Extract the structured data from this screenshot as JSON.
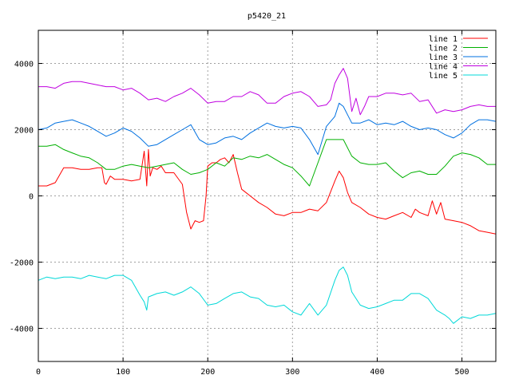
{
  "chart_data": {
    "type": "line",
    "title": "p5420_21",
    "xlabel": "",
    "ylabel": "",
    "xlim": [
      0,
      540
    ],
    "ylim": [
      -5000,
      5000
    ],
    "xticks": [
      0,
      100,
      200,
      300,
      400,
      500
    ],
    "yticks": [
      -4000,
      -2000,
      0,
      2000,
      4000
    ],
    "grid": true,
    "legend_position": "top-right",
    "series": [
      {
        "name": "line 1",
        "color": "#ff0000",
        "x": [
          0,
          10,
          20,
          30,
          40,
          50,
          60,
          70,
          75,
          78,
          80,
          85,
          90,
          100,
          110,
          120,
          125,
          128,
          130,
          132,
          135,
          140,
          145,
          150,
          160,
          170,
          175,
          180,
          185,
          190,
          195,
          198,
          200,
          205,
          210,
          215,
          220,
          225,
          230,
          235,
          240,
          245,
          250,
          260,
          270,
          280,
          290,
          300,
          310,
          320,
          330,
          340,
          350,
          355,
          360,
          365,
          370,
          380,
          390,
          400,
          410,
          420,
          430,
          440,
          445,
          450,
          460,
          465,
          470,
          475,
          480,
          490,
          500,
          510,
          520,
          530,
          540
        ],
        "values": [
          300,
          300,
          400,
          850,
          850,
          800,
          800,
          850,
          850,
          400,
          350,
          600,
          500,
          500,
          450,
          500,
          1350,
          300,
          1400,
          600,
          850,
          800,
          900,
          700,
          700,
          350,
          -500,
          -1000,
          -750,
          -800,
          -750,
          0,
          900,
          1000,
          1000,
          1100,
          1150,
          1000,
          1250,
          700,
          200,
          100,
          0,
          -200,
          -350,
          -550,
          -600,
          -500,
          -500,
          -400,
          -450,
          -200,
          450,
          750,
          550,
          100,
          -200,
          -350,
          -550,
          -650,
          -700,
          -600,
          -500,
          -650,
          -400,
          -500,
          -600,
          -150,
          -550,
          -200,
          -700,
          -750,
          -800,
          -900,
          -1050,
          -1100,
          -1150
        ]
      },
      {
        "name": "line 2",
        "color": "#00b000",
        "x": [
          0,
          10,
          20,
          30,
          40,
          50,
          60,
          70,
          80,
          90,
          100,
          110,
          120,
          130,
          140,
          150,
          160,
          170,
          180,
          190,
          200,
          210,
          220,
          230,
          240,
          250,
          260,
          270,
          280,
          290,
          300,
          310,
          320,
          330,
          340,
          350,
          360,
          370,
          380,
          390,
          400,
          410,
          420,
          430,
          440,
          450,
          460,
          470,
          480,
          490,
          500,
          510,
          520,
          530,
          540
        ],
        "values": [
          1500,
          1500,
          1550,
          1400,
          1300,
          1200,
          1150,
          1000,
          800,
          800,
          900,
          950,
          900,
          850,
          900,
          950,
          1000,
          800,
          650,
          700,
          800,
          1000,
          900,
          1150,
          1100,
          1200,
          1150,
          1250,
          1100,
          950,
          850,
          600,
          300,
          1000,
          1700,
          1700,
          1700,
          1200,
          1000,
          950,
          950,
          1000,
          750,
          550,
          700,
          750,
          650,
          650,
          900,
          1200,
          1300,
          1250,
          1150,
          950,
          950
        ]
      },
      {
        "name": "line 3",
        "color": "#0070e0",
        "x": [
          0,
          10,
          20,
          30,
          40,
          50,
          60,
          70,
          80,
          90,
          100,
          110,
          120,
          130,
          140,
          150,
          160,
          170,
          180,
          190,
          200,
          210,
          220,
          230,
          240,
          250,
          260,
          270,
          280,
          290,
          300,
          310,
          320,
          330,
          340,
          350,
          355,
          360,
          365,
          370,
          380,
          390,
          400,
          410,
          420,
          430,
          440,
          450,
          460,
          470,
          480,
          490,
          500,
          510,
          520,
          530,
          540
        ],
        "values": [
          2000,
          2050,
          2200,
          2250,
          2300,
          2200,
          2100,
          1950,
          1800,
          1900,
          2050,
          1950,
          1750,
          1500,
          1550,
          1700,
          1850,
          2000,
          2150,
          1700,
          1550,
          1600,
          1750,
          1800,
          1700,
          1900,
          2050,
          2200,
          2100,
          2050,
          2100,
          2050,
          1700,
          1250,
          2100,
          2400,
          2800,
          2700,
          2450,
          2200,
          2200,
          2300,
          2150,
          2200,
          2150,
          2250,
          2100,
          2000,
          2050,
          2000,
          1850,
          1750,
          1900,
          2150,
          2300,
          2300,
          2250
        ]
      },
      {
        "name": "line 4",
        "color": "#c000e0",
        "x": [
          0,
          10,
          20,
          30,
          40,
          50,
          60,
          70,
          80,
          90,
          100,
          110,
          120,
          130,
          140,
          150,
          160,
          170,
          180,
          190,
          200,
          210,
          220,
          230,
          240,
          250,
          260,
          270,
          280,
          290,
          300,
          310,
          320,
          330,
          340,
          345,
          350,
          355,
          360,
          365,
          370,
          375,
          380,
          385,
          390,
          400,
          410,
          420,
          430,
          440,
          450,
          460,
          470,
          480,
          490,
          500,
          510,
          520,
          530,
          540
        ],
        "values": [
          3300,
          3300,
          3250,
          3400,
          3450,
          3450,
          3400,
          3350,
          3300,
          3300,
          3200,
          3250,
          3100,
          2900,
          2950,
          2850,
          3000,
          3100,
          3250,
          3050,
          2800,
          2850,
          2850,
          3000,
          3000,
          3150,
          3050,
          2800,
          2800,
          3000,
          3100,
          3150,
          3000,
          2700,
          2750,
          2900,
          3400,
          3650,
          3850,
          3550,
          2550,
          2950,
          2450,
          2700,
          3000,
          3000,
          3100,
          3100,
          3050,
          3100,
          2850,
          2900,
          2500,
          2600,
          2550,
          2600,
          2700,
          2750,
          2700,
          2700
        ]
      },
      {
        "name": "line 5",
        "color": "#00d8d8",
        "x": [
          0,
          10,
          20,
          30,
          40,
          50,
          60,
          70,
          80,
          90,
          100,
          110,
          120,
          125,
          128,
          130,
          135,
          140,
          150,
          160,
          170,
          180,
          190,
          200,
          210,
          220,
          230,
          240,
          250,
          260,
          270,
          280,
          290,
          300,
          310,
          320,
          330,
          340,
          350,
          355,
          360,
          365,
          370,
          380,
          390,
          400,
          410,
          420,
          430,
          440,
          450,
          460,
          470,
          480,
          485,
          490,
          500,
          510,
          520,
          530,
          540
        ],
        "values": [
          -2550,
          -2450,
          -2500,
          -2450,
          -2450,
          -2500,
          -2400,
          -2450,
          -2500,
          -2400,
          -2400,
          -2550,
          -3000,
          -3200,
          -3450,
          -3050,
          -3000,
          -2950,
          -2900,
          -3000,
          -2900,
          -2750,
          -2950,
          -3300,
          -3250,
          -3100,
          -2950,
          -2900,
          -3050,
          -3100,
          -3300,
          -3350,
          -3300,
          -3500,
          -3600,
          -3250,
          -3600,
          -3300,
          -2550,
          -2250,
          -2150,
          -2400,
          -2900,
          -3300,
          -3400,
          -3350,
          -3250,
          -3150,
          -3150,
          -2950,
          -2950,
          -3100,
          -3450,
          -3600,
          -3700,
          -3850,
          -3650,
          -3700,
          -3600,
          -3600,
          -3550
        ]
      }
    ]
  }
}
